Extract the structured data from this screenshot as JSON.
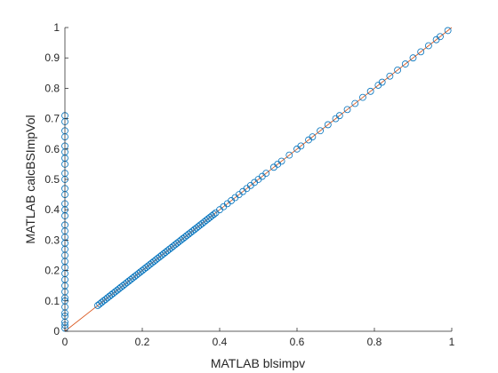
{
  "chart_data": {
    "type": "scatter",
    "title": "",
    "xlabel": "MATLAB blsimpv",
    "ylabel": "MATLAB calcBSImpVol",
    "xlim": [
      0,
      1
    ],
    "ylim": [
      0,
      1
    ],
    "x_ticks": [
      "0",
      "0.2",
      "0.4",
      "0.6",
      "0.8",
      "1"
    ],
    "y_ticks": [
      "0",
      "0.1",
      "0.2",
      "0.3",
      "0.4",
      "0.5",
      "0.6",
      "0.7",
      "0.8",
      "0.9",
      "1"
    ],
    "grid": false,
    "box": false,
    "colors": {
      "marker": "#0072BD",
      "reference_line": "#D95319"
    },
    "reference_line": {
      "x": [
        0,
        1
      ],
      "y": [
        0,
        1
      ]
    },
    "series": [
      {
        "marker": "circle",
        "points": [
          [
            0.0,
            0.01
          ],
          [
            0.0,
            0.02
          ],
          [
            0.0,
            0.03
          ],
          [
            0.0,
            0.05
          ],
          [
            0.0,
            0.06
          ],
          [
            0.0,
            0.08
          ],
          [
            0.0,
            0.1
          ],
          [
            0.0,
            0.11
          ],
          [
            0.0,
            0.13
          ],
          [
            0.0,
            0.15
          ],
          [
            0.0,
            0.17
          ],
          [
            0.0,
            0.19
          ],
          [
            0.0,
            0.21
          ],
          [
            0.0,
            0.23
          ],
          [
            0.0,
            0.25
          ],
          [
            0.0,
            0.27
          ],
          [
            0.0,
            0.29
          ],
          [
            0.0,
            0.31
          ],
          [
            0.0,
            0.33
          ],
          [
            0.0,
            0.35
          ],
          [
            0.0,
            0.38
          ],
          [
            0.0,
            0.4
          ],
          [
            0.0,
            0.42
          ],
          [
            0.0,
            0.45
          ],
          [
            0.0,
            0.47
          ],
          [
            0.0,
            0.5
          ],
          [
            0.0,
            0.52
          ],
          [
            0.0,
            0.55
          ],
          [
            0.0,
            0.57
          ],
          [
            0.0,
            0.59
          ],
          [
            0.0,
            0.61
          ],
          [
            0.0,
            0.64
          ],
          [
            0.0,
            0.66
          ],
          [
            0.0,
            0.69
          ],
          [
            0.0,
            0.71
          ],
          [
            0.085,
            0.085
          ],
          [
            0.09,
            0.09
          ],
          [
            0.095,
            0.095
          ],
          [
            0.1,
            0.1
          ],
          [
            0.105,
            0.105
          ],
          [
            0.11,
            0.11
          ],
          [
            0.115,
            0.115
          ],
          [
            0.12,
            0.12
          ],
          [
            0.125,
            0.125
          ],
          [
            0.13,
            0.13
          ],
          [
            0.135,
            0.135
          ],
          [
            0.14,
            0.14
          ],
          [
            0.145,
            0.145
          ],
          [
            0.15,
            0.15
          ],
          [
            0.155,
            0.155
          ],
          [
            0.16,
            0.16
          ],
          [
            0.165,
            0.165
          ],
          [
            0.17,
            0.17
          ],
          [
            0.175,
            0.175
          ],
          [
            0.18,
            0.18
          ],
          [
            0.185,
            0.185
          ],
          [
            0.19,
            0.19
          ],
          [
            0.195,
            0.195
          ],
          [
            0.2,
            0.2
          ],
          [
            0.205,
            0.205
          ],
          [
            0.21,
            0.21
          ],
          [
            0.215,
            0.215
          ],
          [
            0.22,
            0.22
          ],
          [
            0.225,
            0.225
          ],
          [
            0.23,
            0.23
          ],
          [
            0.235,
            0.235
          ],
          [
            0.24,
            0.24
          ],
          [
            0.245,
            0.245
          ],
          [
            0.25,
            0.25
          ],
          [
            0.255,
            0.255
          ],
          [
            0.26,
            0.26
          ],
          [
            0.265,
            0.265
          ],
          [
            0.27,
            0.27
          ],
          [
            0.275,
            0.275
          ],
          [
            0.28,
            0.28
          ],
          [
            0.285,
            0.285
          ],
          [
            0.29,
            0.29
          ],
          [
            0.295,
            0.295
          ],
          [
            0.3,
            0.3
          ],
          [
            0.305,
            0.305
          ],
          [
            0.31,
            0.31
          ],
          [
            0.315,
            0.315
          ],
          [
            0.32,
            0.32
          ],
          [
            0.325,
            0.325
          ],
          [
            0.33,
            0.33
          ],
          [
            0.335,
            0.335
          ],
          [
            0.34,
            0.34
          ],
          [
            0.345,
            0.345
          ],
          [
            0.35,
            0.35
          ],
          [
            0.355,
            0.355
          ],
          [
            0.36,
            0.36
          ],
          [
            0.365,
            0.365
          ],
          [
            0.37,
            0.37
          ],
          [
            0.375,
            0.375
          ],
          [
            0.38,
            0.38
          ],
          [
            0.385,
            0.385
          ],
          [
            0.39,
            0.39
          ],
          [
            0.4,
            0.4
          ],
          [
            0.41,
            0.41
          ],
          [
            0.42,
            0.42
          ],
          [
            0.43,
            0.43
          ],
          [
            0.44,
            0.44
          ],
          [
            0.45,
            0.45
          ],
          [
            0.46,
            0.46
          ],
          [
            0.47,
            0.47
          ],
          [
            0.48,
            0.48
          ],
          [
            0.49,
            0.49
          ],
          [
            0.5,
            0.5
          ],
          [
            0.51,
            0.51
          ],
          [
            0.52,
            0.52
          ],
          [
            0.54,
            0.54
          ],
          [
            0.55,
            0.55
          ],
          [
            0.56,
            0.56
          ],
          [
            0.58,
            0.58
          ],
          [
            0.6,
            0.6
          ],
          [
            0.61,
            0.61
          ],
          [
            0.63,
            0.63
          ],
          [
            0.64,
            0.64
          ],
          [
            0.66,
            0.66
          ],
          [
            0.68,
            0.68
          ],
          [
            0.7,
            0.7
          ],
          [
            0.71,
            0.71
          ],
          [
            0.73,
            0.73
          ],
          [
            0.75,
            0.75
          ],
          [
            0.77,
            0.77
          ],
          [
            0.79,
            0.79
          ],
          [
            0.81,
            0.81
          ],
          [
            0.82,
            0.82
          ],
          [
            0.84,
            0.84
          ],
          [
            0.86,
            0.86
          ],
          [
            0.88,
            0.88
          ],
          [
            0.9,
            0.9
          ],
          [
            0.92,
            0.92
          ],
          [
            0.94,
            0.94
          ],
          [
            0.96,
            0.96
          ],
          [
            0.97,
            0.97
          ],
          [
            0.99,
            0.99
          ]
        ]
      }
    ]
  }
}
